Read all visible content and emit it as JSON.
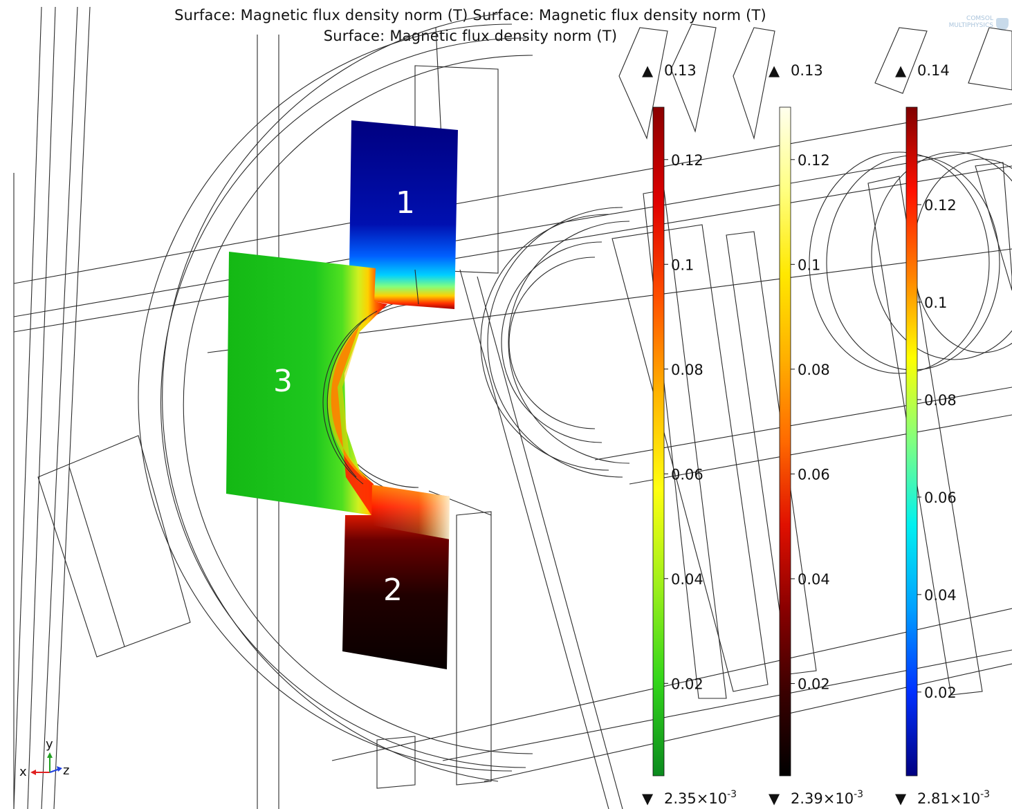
{
  "title": {
    "line1": "Surface: Magnetic flux density norm (T)  Surface: Magnetic flux density norm (T)",
    "line2": "Surface: Magnetic flux density norm (T)"
  },
  "logo": {
    "line1": "COMSOL",
    "line2": "MULTIPHYSICS"
  },
  "region_labels": [
    "1",
    "2",
    "3"
  ],
  "colorbars": [
    {
      "name": "rainbow",
      "max_label": "0.13",
      "min_label": "2.35×10",
      "min_exp": "-3",
      "max": 0.13,
      "min": 0.00235,
      "ticks": [
        {
          "value": 0.12,
          "label": "0.12"
        },
        {
          "value": 0.1,
          "label": "0.1"
        },
        {
          "value": 0.08,
          "label": "0.08"
        },
        {
          "value": 0.06,
          "label": "0.06"
        },
        {
          "value": 0.04,
          "label": "0.04"
        },
        {
          "value": 0.02,
          "label": "0.02"
        }
      ],
      "colors": [
        "#0b8a1e",
        "#33d61a",
        "#9ff01a",
        "#ffff10",
        "#ffb400",
        "#ff5000",
        "#e00000",
        "#8a0000"
      ]
    },
    {
      "name": "thermal",
      "max_label": "0.13",
      "min_label": "2.39×10",
      "min_exp": "-3",
      "max": 0.13,
      "min": 0.00239,
      "ticks": [
        {
          "value": 0.12,
          "label": "0.12"
        },
        {
          "value": 0.1,
          "label": "0.1"
        },
        {
          "value": 0.08,
          "label": "0.08"
        },
        {
          "value": 0.06,
          "label": "0.06"
        },
        {
          "value": 0.04,
          "label": "0.04"
        },
        {
          "value": 0.02,
          "label": "0.02"
        }
      ],
      "colors": [
        "#000000",
        "#3a0000",
        "#8a0000",
        "#e01000",
        "#ff6a00",
        "#ffb000",
        "#ffe800",
        "#ffff80",
        "#ffffee"
      ]
    },
    {
      "name": "jet",
      "max_label": "0.14",
      "min_label": "2.81×10",
      "min_exp": "-3",
      "max": 0.14,
      "min": 0.00281,
      "ticks": [
        {
          "value": 0.12,
          "label": "0.12"
        },
        {
          "value": 0.1,
          "label": "0.1"
        },
        {
          "value": 0.08,
          "label": "0.08"
        },
        {
          "value": 0.06,
          "label": "0.06"
        },
        {
          "value": 0.04,
          "label": "0.04"
        },
        {
          "value": 0.02,
          "label": "0.02"
        }
      ],
      "colors": [
        "#000080",
        "#0030ff",
        "#00a0ff",
        "#00f0f0",
        "#80ff80",
        "#ffff00",
        "#ff8000",
        "#ff1000",
        "#800000"
      ]
    }
  ],
  "axes": {
    "x": "x",
    "y": "y",
    "z": "z"
  }
}
